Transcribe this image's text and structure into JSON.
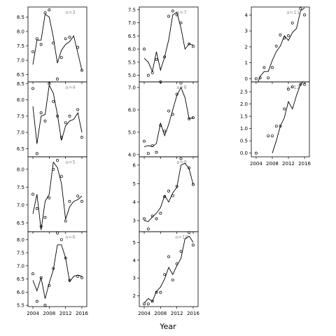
{
  "figure": {
    "xlabel": "Year"
  },
  "chart_data": [
    {
      "type": "line",
      "label": "a=3",
      "x_points": [
        2004,
        2005,
        2006,
        2007,
        2008,
        2009,
        2010,
        2011,
        2012,
        2013,
        2015,
        2016
      ],
      "y_points": [
        7.3,
        7.75,
        7.55,
        8.65,
        8.75,
        7.6,
        6.35,
        7.1,
        7.75,
        7.8,
        7.45,
        6.65
      ],
      "x_line": [
        2004,
        2005,
        2006,
        2007,
        2008,
        2009,
        2010,
        2011,
        2012,
        2013,
        2014,
        2015,
        2016
      ],
      "y_line": [
        6.85,
        7.7,
        7.7,
        8.6,
        8.5,
        7.8,
        6.9,
        7.35,
        7.55,
        7.65,
        7.85,
        7.25,
        6.65
      ],
      "xlim": [
        2002.8,
        2017.2
      ],
      "ylim": [
        6.25,
        8.85
      ],
      "yticks": [
        6.5,
        7.0,
        7.5,
        8.0,
        8.5
      ],
      "ytick_labels": [
        "6.5",
        "7.0",
        "7.5",
        "8.0",
        "8.5"
      ]
    },
    {
      "type": "line",
      "label": "a=7",
      "x_points": [
        2004,
        2005,
        2006,
        2007,
        2008,
        2009,
        2010,
        2011,
        2012,
        2013,
        2015,
        2016
      ],
      "y_points": [
        6.0,
        5.0,
        5.1,
        5.6,
        4.75,
        5.7,
        7.25,
        7.45,
        7.3,
        7.0,
        6.2,
        6.1
      ],
      "x_line": [
        2004,
        2005,
        2006,
        2007,
        2008,
        2009,
        2010,
        2011,
        2012,
        2013,
        2014,
        2015,
        2016
      ],
      "y_line": [
        5.65,
        5.5,
        5.15,
        5.9,
        5.2,
        5.7,
        6.35,
        7.3,
        7.4,
        6.8,
        6.0,
        6.2,
        6.15
      ],
      "xlim": [
        2002.8,
        2017.2
      ],
      "ylim": [
        4.75,
        7.6
      ],
      "yticks": [
        5.0,
        5.5,
        6.0,
        6.5,
        7.0,
        7.5
      ],
      "ytick_labels": [
        "5.0",
        "5.5",
        "6.0",
        "6.5",
        "7.0",
        "7.5"
      ]
    },
    {
      "type": "line",
      "label": "a=11",
      "x_points": [
        2004,
        2005,
        2006,
        2007,
        2008,
        2009,
        2010,
        2011,
        2012,
        2013,
        2015,
        2016
      ],
      "y_points": [
        0.0,
        0.05,
        0.7,
        0.05,
        0.7,
        2.05,
        2.75,
        2.55,
        2.7,
        3.5,
        4.4,
        4.0
      ],
      "x_line": [
        2004,
        2005,
        2006,
        2007,
        2008,
        2009,
        2010,
        2011,
        2012,
        2013,
        2014,
        2015,
        2016
      ],
      "y_line": [
        -0.5,
        0.15,
        0.45,
        0.45,
        1.15,
        1.7,
        2.05,
        2.7,
        2.4,
        2.9,
        3.15,
        4.25,
        4.45
      ],
      "xlim": [
        2002.8,
        2017.2
      ],
      "ylim": [
        -0.2,
        4.5
      ],
      "yticks": [
        0,
        1,
        2,
        3,
        4
      ],
      "ytick_labels": [
        "0",
        "1",
        "2",
        "3",
        "4"
      ]
    },
    {
      "type": "line",
      "label": "a=4",
      "x_points": [
        2004,
        2005,
        2006,
        2007,
        2008,
        2009,
        2010,
        2011,
        2012,
        2013,
        2015,
        2016
      ],
      "y_points": [
        8.35,
        6.35,
        7.6,
        7.35,
        8.5,
        7.95,
        7.5,
        6.85,
        7.3,
        7.5,
        7.7,
        6.85
      ],
      "x_line": [
        2004,
        2005,
        2006,
        2007,
        2008,
        2009,
        2010,
        2011,
        2012,
        2013,
        2014,
        2015,
        2016
      ],
      "y_line": [
        7.8,
        6.65,
        7.5,
        7.55,
        8.45,
        8.2,
        7.55,
        6.75,
        7.2,
        7.35,
        7.4,
        7.6,
        7.0
      ],
      "xlim": [
        2002.8,
        2017.2
      ],
      "ylim": [
        6.25,
        8.55
      ],
      "yticks": [
        6.5,
        7.0,
        7.5,
        8.0,
        8.5
      ],
      "ytick_labels": [
        "6.5",
        "7.0",
        "7.5",
        "8.0",
        "8.5"
      ]
    },
    {
      "type": "line",
      "label": "a=8",
      "x_points": [
        2004,
        2005,
        2006,
        2007,
        2008,
        2009,
        2010,
        2011,
        2012,
        2013,
        2015,
        2016
      ],
      "y_points": [
        4.6,
        4.05,
        4.4,
        4.1,
        5.3,
        5.05,
        5.95,
        5.8,
        6.7,
        7.2,
        5.6,
        5.65
      ],
      "x_line": [
        2004,
        2005,
        2006,
        2007,
        2008,
        2009,
        2010,
        2011,
        2012,
        2013,
        2014,
        2015,
        2016
      ],
      "y_line": [
        4.35,
        4.4,
        4.35,
        4.5,
        5.4,
        4.85,
        5.35,
        6.0,
        6.65,
        7.0,
        6.55,
        5.6,
        5.65
      ],
      "xlim": [
        2002.8,
        2017.2
      ],
      "ylim": [
        3.9,
        7.25
      ],
      "yticks": [
        4.0,
        5.0,
        6.0,
        7.0
      ],
      "ytick_labels": [
        "4.0",
        "5.0",
        "6.0",
        "7.0"
      ]
    },
    {
      "type": "line",
      "label": "a=12",
      "x_points": [
        2004,
        2007,
        2008,
        2009,
        2010,
        2011,
        2012,
        2013,
        2015,
        2016
      ],
      "y_points": [
        0.0,
        0.7,
        0.7,
        1.1,
        1.1,
        1.8,
        2.6,
        2.7,
        2.8,
        2.8
      ],
      "x_line": [
        2008,
        2009,
        2010,
        2011,
        2012,
        2013,
        2014,
        2015,
        2016
      ],
      "y_line": [
        0.0,
        0.5,
        1.1,
        1.45,
        2.1,
        1.8,
        2.35,
        2.8,
        2.95
      ],
      "xlim": [
        2002.8,
        2017.2
      ],
      "ylim": [
        -0.15,
        2.9
      ],
      "yticks": [
        0.0,
        0.5,
        1.0,
        1.5,
        2.0,
        2.5
      ],
      "ytick_labels": [
        "0.0",
        "0.5",
        "1.0",
        "1.5",
        "2.0",
        "2.5"
      ]
    },
    {
      "type": "line",
      "label": "a=5",
      "x_points": [
        2004,
        2005,
        2006,
        2007,
        2008,
        2009,
        2010,
        2011,
        2012,
        2013,
        2015,
        2016
      ],
      "y_points": [
        7.3,
        6.9,
        6.4,
        6.65,
        7.2,
        8.0,
        8.25,
        7.8,
        6.55,
        7.1,
        7.25,
        7.1
      ],
      "x_line": [
        2004,
        2005,
        2006,
        2007,
        2008,
        2009,
        2010,
        2011,
        2012,
        2013,
        2014,
        2015,
        2016
      ],
      "y_line": [
        6.75,
        7.3,
        6.3,
        7.1,
        7.3,
        8.2,
        8.05,
        7.6,
        6.6,
        6.95,
        7.1,
        7.15,
        7.25
      ],
      "xlim": [
        2002.8,
        2017.2
      ],
      "ylim": [
        6.25,
        8.35
      ],
      "yticks": [
        6.5,
        7.0,
        7.5,
        8.0
      ],
      "ytick_labels": [
        "6.5",
        "7.0",
        "7.5",
        "8.0"
      ]
    },
    {
      "type": "line",
      "label": "a=9",
      "x_points": [
        2004,
        2005,
        2006,
        2007,
        2008,
        2009,
        2010,
        2011,
        2012,
        2013,
        2015,
        2016
      ],
      "y_points": [
        3.1,
        2.55,
        3.25,
        3.1,
        3.4,
        4.3,
        4.6,
        4.35,
        4.85,
        6.35,
        5.85,
        4.95
      ],
      "x_line": [
        2004,
        2005,
        2006,
        2007,
        2008,
        2009,
        2010,
        2011,
        2012,
        2013,
        2014,
        2015,
        2016
      ],
      "y_line": [
        3.0,
        2.95,
        3.2,
        3.4,
        3.7,
        4.35,
        4.0,
        4.5,
        4.8,
        6.0,
        6.1,
        5.8,
        4.95
      ],
      "xlim": [
        2002.8,
        2017.2
      ],
      "ylim": [
        2.4,
        6.45
      ],
      "yticks": [
        3,
        4,
        5,
        6
      ],
      "ytick_labels": [
        "3",
        "4",
        "5",
        "6"
      ]
    },
    {
      "type": "line",
      "label": "a=6",
      "x_points": [
        2004,
        2005,
        2006,
        2007,
        2008,
        2009,
        2010,
        2011,
        2012,
        2013,
        2015,
        2016
      ],
      "y_points": [
        6.7,
        5.65,
        6.55,
        5.5,
        6.25,
        6.9,
        8.25,
        8.0,
        7.3,
        6.45,
        6.6,
        6.55
      ],
      "x_line": [
        2004,
        2005,
        2006,
        2007,
        2008,
        2009,
        2010,
        2011,
        2012,
        2013,
        2014,
        2015,
        2016
      ],
      "y_line": [
        6.45,
        6.05,
        6.55,
        5.75,
        6.35,
        6.85,
        7.8,
        7.8,
        7.3,
        6.4,
        6.6,
        6.65,
        6.6
      ],
      "xlim": [
        2002.8,
        2017.2
      ],
      "ylim": [
        5.45,
        8.3
      ],
      "yticks": [
        5.5,
        6.0,
        6.5,
        7.0,
        7.5,
        8.0
      ],
      "ytick_labels": [
        "5.5",
        "6.0",
        "6.5",
        "7.0",
        "7.5",
        "8.0"
      ]
    },
    {
      "type": "line",
      "label": "a=10",
      "x_points": [
        2004,
        2005,
        2006,
        2007,
        2008,
        2009,
        2010,
        2011,
        2012,
        2013,
        2015,
        2016
      ],
      "y_points": [
        1.55,
        1.55,
        1.7,
        2.2,
        2.2,
        3.2,
        4.2,
        2.9,
        3.8,
        4.5,
        5.55,
        4.85
      ],
      "x_line": [
        2004,
        2005,
        2006,
        2007,
        2008,
        2009,
        2010,
        2011,
        2012,
        2013,
        2014,
        2015,
        2016
      ],
      "y_line": [
        1.6,
        1.85,
        1.7,
        2.25,
        2.5,
        2.95,
        3.6,
        3.2,
        3.7,
        4.1,
        5.2,
        5.35,
        5.0
      ],
      "xlim": [
        2002.8,
        2017.2
      ],
      "ylim": [
        1.4,
        5.6
      ],
      "yticks": [
        2,
        3,
        4,
        5
      ],
      "ytick_labels": [
        "2",
        "3",
        "4",
        "5"
      ]
    }
  ],
  "xticks": [
    2004,
    2008,
    2012,
    2016
  ],
  "xtick_labels": [
    "2004",
    "2008",
    "2012",
    "2016"
  ]
}
